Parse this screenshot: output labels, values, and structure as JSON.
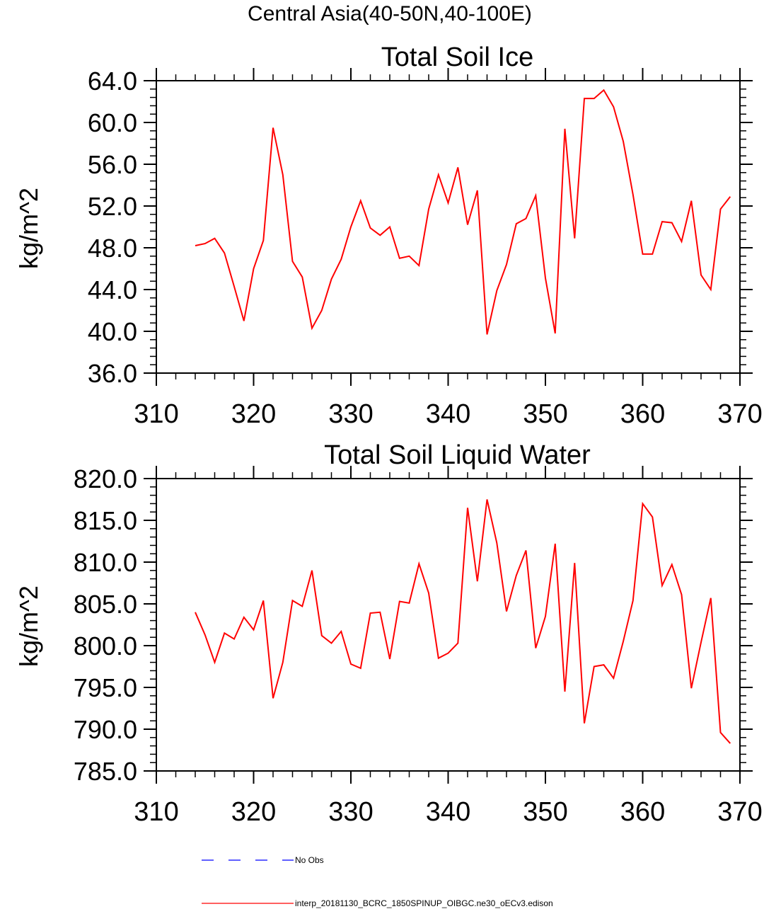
{
  "page_title": "Central Asia(40-50N,40-100E)",
  "colors": {
    "model_line": "#ff0000",
    "obs_line": "#0000ff",
    "axis": "#000000"
  },
  "legend": {
    "entries": [
      {
        "label": "No Obs",
        "color": "#0000ff",
        "style": "dashed"
      },
      {
        "label": "interp_20181130_BCRC_1850SPINUP_OIBGC.ne30_oECv3.edison",
        "color": "#ff0000",
        "style": "solid"
      }
    ]
  },
  "chart_data": [
    {
      "type": "line",
      "title": "Total Soil Ice",
      "xlabel": "",
      "ylabel": "kg/m^2",
      "xlim": [
        310,
        370
      ],
      "ylim": [
        36,
        64
      ],
      "x_ticks": [
        310,
        320,
        330,
        340,
        350,
        360,
        370
      ],
      "x_tick_labels": [
        "310",
        "320",
        "330",
        "340",
        "350",
        "360",
        "370"
      ],
      "y_ticks": [
        36,
        40,
        44,
        48,
        52,
        56,
        60,
        64
      ],
      "y_tick_labels": [
        "36.0",
        "40.0",
        "44.0",
        "48.0",
        "52.0",
        "56.0",
        "60.0",
        "64.0"
      ],
      "series": [
        {
          "name": "interp_20181130_BCRC_1850SPINUP_OIBGC.ne30_oECv3.edison",
          "x": [
            314,
            315,
            316,
            317,
            318,
            319,
            320,
            321,
            322,
            323,
            324,
            325,
            326,
            327,
            328,
            329,
            330,
            331,
            332,
            333,
            334,
            335,
            336,
            337,
            338,
            339,
            340,
            341,
            342,
            343,
            344,
            345,
            346,
            347,
            348,
            349,
            350,
            351,
            352,
            353,
            354,
            355,
            356,
            357,
            358,
            359,
            360,
            361,
            362,
            363,
            364,
            365,
            366,
            367,
            368,
            369
          ],
          "values": [
            48.2,
            48.4,
            48.9,
            47.5,
            44.3,
            41.0,
            46.0,
            48.7,
            59.5,
            55.0,
            46.7,
            45.2,
            40.3,
            42.0,
            45.0,
            46.9,
            50.0,
            52.5,
            49.9,
            49.2,
            50.0,
            47.0,
            47.2,
            46.3,
            51.7,
            55.0,
            52.3,
            55.7,
            50.2,
            53.5,
            39.7,
            43.9,
            46.4,
            50.3,
            50.8,
            53.0,
            45.1,
            39.8,
            59.4,
            48.9,
            62.3,
            62.3,
            63.1,
            61.5,
            58.2,
            53.1,
            47.4,
            47.4,
            50.5,
            50.4,
            48.6,
            52.5,
            45.4,
            44.0,
            51.7,
            52.9
          ]
        }
      ]
    },
    {
      "type": "line",
      "title": "Total Soil Liquid Water",
      "xlabel": "",
      "ylabel": "kg/m^2",
      "xlim": [
        310,
        370
      ],
      "ylim": [
        785,
        820
      ],
      "x_ticks": [
        310,
        320,
        330,
        340,
        350,
        360,
        370
      ],
      "x_tick_labels": [
        "310",
        "320",
        "330",
        "340",
        "350",
        "360",
        "370"
      ],
      "y_ticks": [
        785,
        790,
        795,
        800,
        805,
        810,
        815,
        820
      ],
      "y_tick_labels": [
        "785.0",
        "790.0",
        "795.0",
        "800.0",
        "805.0",
        "810.0",
        "815.0",
        "820.0"
      ],
      "series": [
        {
          "name": "interp_20181130_BCRC_1850SPINUP_OIBGC.ne30_oECv3.edison",
          "x": [
            314,
            315,
            316,
            317,
            318,
            319,
            320,
            321,
            322,
            323,
            324,
            325,
            326,
            327,
            328,
            329,
            330,
            331,
            332,
            333,
            334,
            335,
            336,
            337,
            338,
            339,
            340,
            341,
            342,
            343,
            344,
            345,
            346,
            347,
            348,
            349,
            350,
            351,
            352,
            353,
            354,
            355,
            356,
            357,
            358,
            359,
            360,
            361,
            362,
            363,
            364,
            365,
            366,
            367,
            368,
            369
          ],
          "values": [
            804.0,
            801.3,
            798.0,
            801.5,
            800.8,
            803.4,
            801.9,
            805.4,
            793.7,
            798.0,
            805.4,
            804.7,
            809.0,
            801.2,
            800.3,
            801.7,
            797.8,
            797.3,
            803.9,
            804.0,
            798.4,
            805.3,
            805.1,
            809.8,
            806.3,
            798.5,
            799.1,
            800.3,
            816.5,
            807.7,
            817.5,
            812.3,
            804.1,
            808.4,
            811.4,
            799.7,
            803.5,
            812.2,
            794.5,
            809.9,
            790.7,
            797.5,
            797.7,
            796.1,
            800.5,
            805.4,
            817.0,
            815.4,
            807.2,
            809.7,
            806.1,
            794.9,
            800.4,
            805.7,
            789.6,
            788.3
          ]
        }
      ]
    }
  ]
}
